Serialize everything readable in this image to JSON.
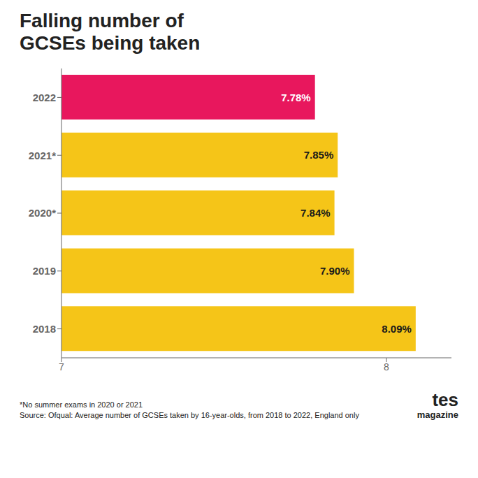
{
  "chart_data": {
    "type": "bar",
    "orientation": "horizontal",
    "title": "Falling number of\nGCSEs being taken",
    "categories": [
      "2018",
      "2019",
      "2020*",
      "2021*",
      "2022"
    ],
    "values": [
      8.09,
      7.9,
      7.84,
      7.85,
      7.78
    ],
    "value_labels": [
      "8.09%",
      "7.90%",
      "7.84%",
      "7.85%",
      "7.78%"
    ],
    "data_labels": true,
    "colors": [
      "#F5C518",
      "#F5C518",
      "#F5C518",
      "#F5C518",
      "#E8175D"
    ],
    "xlim": [
      7,
      8.2
    ],
    "xticks": [
      7,
      8
    ],
    "grid": false,
    "annotations": [
      "*No summer exams in 2020 or 2021",
      "Source: Ofqual: Average number of GCSEs taken by 16-year-olds, from 2018 to 2022, England only",
      "tes",
      "magazine"
    ]
  }
}
